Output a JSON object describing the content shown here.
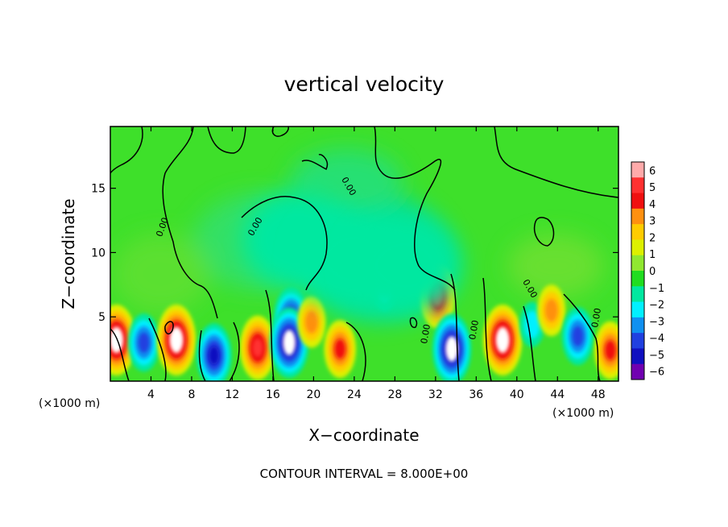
{
  "chart_data": {
    "type": "heatmap",
    "title": "vertical velocity",
    "xlabel": "X−coordinate",
    "ylabel": "Z−coordinate",
    "x_unit": "(×1000 m)",
    "y_unit": "(×1000 m)",
    "xlim": [
      0,
      50
    ],
    "ylim": [
      0,
      19.8
    ],
    "x_ticks": [
      4,
      8,
      12,
      16,
      20,
      24,
      28,
      32,
      36,
      40,
      44,
      48
    ],
    "y_ticks": [
      5,
      10,
      15
    ],
    "colorbar": {
      "range": [
        -6,
        6
      ],
      "ticks": [
        "6",
        "5",
        "4",
        "3",
        "2",
        "1",
        "0",
        "−1",
        "−2",
        "−3",
        "−4",
        "−5",
        "−6"
      ],
      "colors": [
        "#ffaaaa",
        "#ff3030",
        "#f01010",
        "#ff9010",
        "#ffcc00",
        "#ddf000",
        "#90e830",
        "#20dd20",
        "#00e8a0",
        "#00f0ff",
        "#1090f0",
        "#2040e0",
        "#1010c0",
        "#7000b0"
      ]
    },
    "contour_labels": [
      "0.00",
      "0.00",
      "0.00",
      "0.00",
      "0.00",
      "0.00",
      "0.00"
    ],
    "footer": "CONTOUR INTERVAL = 8.000E+00",
    "features": [
      {
        "x": 0.6,
        "z": 3.2,
        "w": 6
      },
      {
        "x": 3.3,
        "z": 3.0,
        "w": -4
      },
      {
        "x": 6.5,
        "z": 3.2,
        "w": 6
      },
      {
        "x": 10.2,
        "z": 2.0,
        "w": -5
      },
      {
        "x": 14.5,
        "z": 2.6,
        "w": 5
      },
      {
        "x": 17.8,
        "z": 4.8,
        "w": -5
      },
      {
        "x": 17.6,
        "z": 3.0,
        "w": -6
      },
      {
        "x": 19.8,
        "z": 4.6,
        "w": 3
      },
      {
        "x": 22.6,
        "z": 2.5,
        "w": 4
      },
      {
        "x": 27.0,
        "z": 7.2,
        "w": -2
      },
      {
        "x": 32.2,
        "z": 6.6,
        "w": 5
      },
      {
        "x": 33.6,
        "z": 2.5,
        "w": -6
      },
      {
        "x": 38.6,
        "z": 3.2,
        "w": 6
      },
      {
        "x": 41.5,
        "z": 4.4,
        "w": -2
      },
      {
        "x": 43.4,
        "z": 5.5,
        "w": 3
      },
      {
        "x": 46.0,
        "z": 3.5,
        "w": -4
      },
      {
        "x": 49.2,
        "z": 2.4,
        "w": 4
      },
      {
        "x": 18.5,
        "z": 11.0,
        "w": -1
      },
      {
        "x": 24.0,
        "z": 9.5,
        "w": -1
      },
      {
        "x": 29.0,
        "z": 9.0,
        "w": -1
      }
    ]
  }
}
